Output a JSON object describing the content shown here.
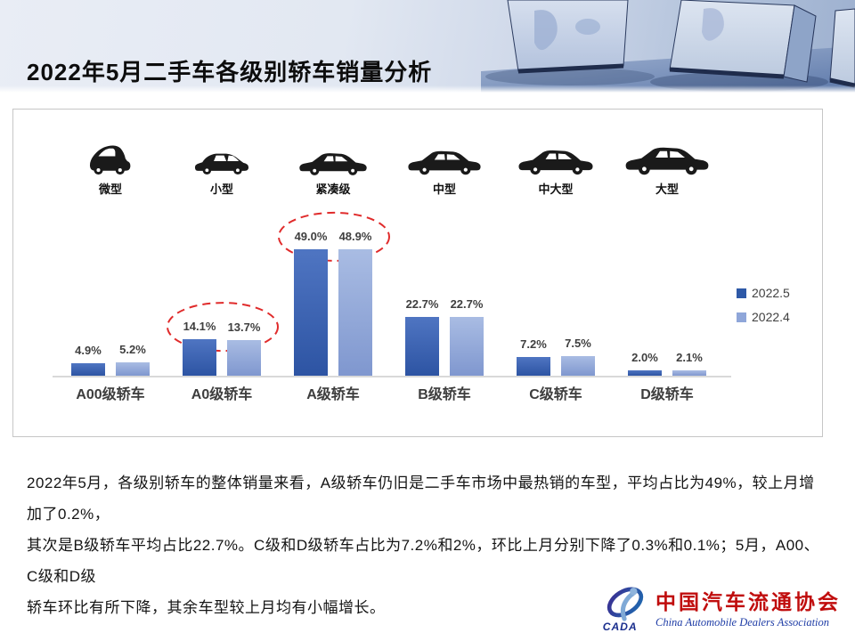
{
  "header": {
    "title": "2022年5月二手车各级别轿车销量分析"
  },
  "vehicle_types": [
    {
      "label": "微型",
      "icon": "microcar-icon"
    },
    {
      "label": "小型",
      "icon": "hatchback-icon"
    },
    {
      "label": "紧凑级",
      "icon": "sedan-icon"
    },
    {
      "label": "中型",
      "icon": "sedan-icon"
    },
    {
      "label": "中大型",
      "icon": "sedan-icon"
    },
    {
      "label": "大型",
      "icon": "sedan-icon"
    }
  ],
  "chart_data": {
    "type": "bar",
    "categories": [
      "A00级轿车",
      "A0级轿车",
      "A级轿车",
      "B级轿车",
      "C级轿车",
      "D级轿车"
    ],
    "series": [
      {
        "name": "2022.5",
        "color": "#2e59a7",
        "gradient": [
          "#4f75c2",
          "#2d54a3"
        ],
        "values": [
          4.9,
          14.1,
          49.0,
          22.7,
          7.2,
          2.0
        ]
      },
      {
        "name": "2022.4",
        "color": "#8fa6d9",
        "gradient": [
          "#a9bce3",
          "#7f97cf"
        ],
        "values": [
          5.2,
          13.7,
          48.9,
          22.7,
          7.5,
          2.1
        ]
      }
    ],
    "value_suffix": "%",
    "ylim": [
      0,
      55
    ],
    "grid": false,
    "legend_position": "right",
    "highlight_color": "#e02b2b",
    "highlighted_categories": [
      "A0级轿车",
      "A级轿车"
    ]
  },
  "summary": {
    "lines": [
      "2022年5月，各级别轿车的整体销量来看，A级轿车仍旧是二手车市场中最热销的车型，平均占比为49%，较上月增加了0.2%，",
      "其次是B级轿车平均占比22.7%。C级和D级轿车占比为7.2%和2%，环比上月分别下降了0.3%和0.1%；5月，A00、C级和D级",
      "轿车环比有所下降，其余车型较上月均有小幅增长。"
    ]
  },
  "logo": {
    "acronym": "CADA",
    "name_cn": "中国汽车流通协会",
    "name_en": "China Automobile Dealers Association"
  }
}
